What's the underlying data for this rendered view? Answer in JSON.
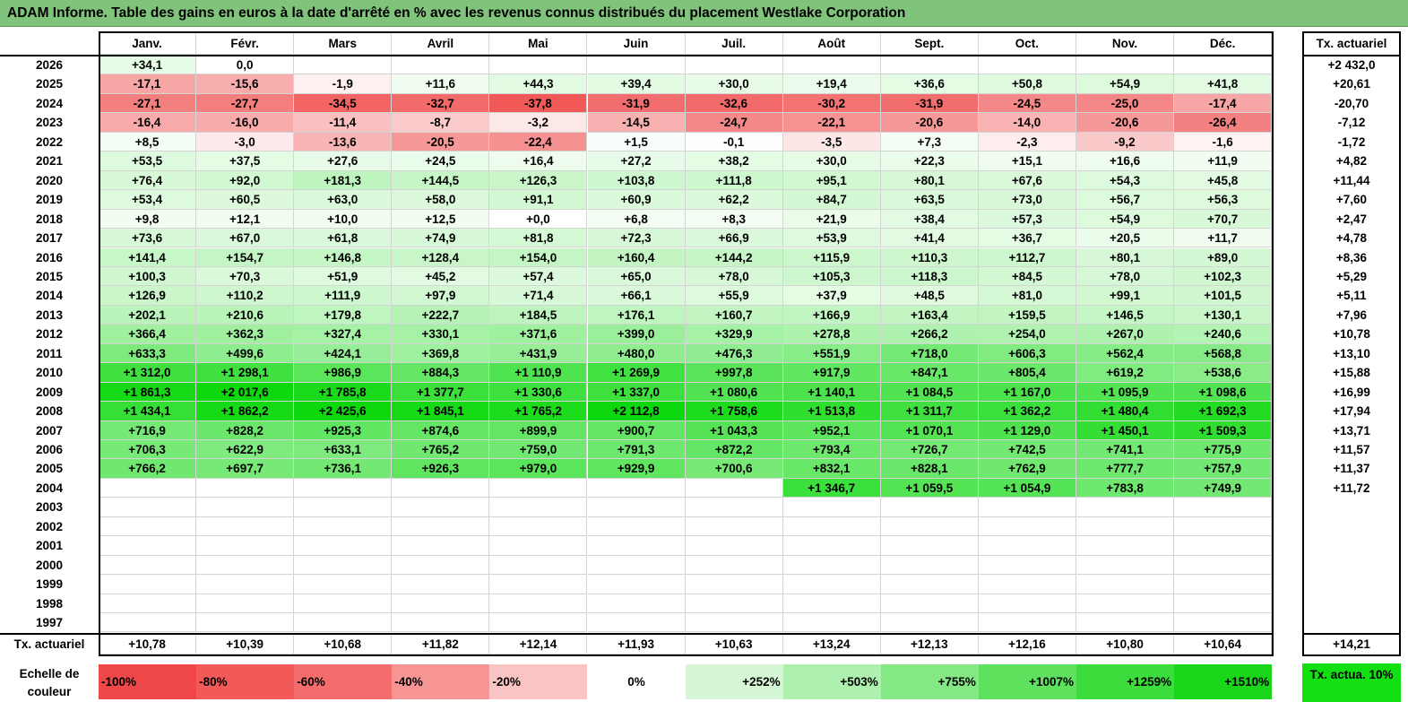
{
  "title": "ADAM Informe. Table des gains en euros à la date d'arrêté en % avec les revenus connus distribués du placement Westlake Corporation",
  "chart_data": {
    "type": "table",
    "months": [
      "Janv.",
      "Févr.",
      "Mars",
      "Avril",
      "Mai",
      "Juin",
      "Juil.",
      "Août",
      "Sept.",
      "Oct.",
      "Nov.",
      "Déc."
    ],
    "annual_header": "Tx. actuariel",
    "rows": [
      {
        "year": "2026",
        "cells": [
          "+34,1",
          "0,0",
          "",
          "",
          "",
          "",
          "",
          "",
          "",
          "",
          "",
          ""
        ],
        "rate": "+2 432,0"
      },
      {
        "year": "2025",
        "cells": [
          "-17,1",
          "-15,6",
          "-1,9",
          "+11,6",
          "+44,3",
          "+39,4",
          "+30,0",
          "+19,4",
          "+36,6",
          "+50,8",
          "+54,9",
          "+41,8"
        ],
        "rate": "+20,61"
      },
      {
        "year": "2024",
        "cells": [
          "-27,1",
          "-27,7",
          "-34,5",
          "-32,7",
          "-37,8",
          "-31,9",
          "-32,6",
          "-30,2",
          "-31,9",
          "-24,5",
          "-25,0",
          "-17,4"
        ],
        "rate": "-20,70"
      },
      {
        "year": "2023",
        "cells": [
          "-16,4",
          "-16,0",
          "-11,4",
          "-8,7",
          "-3,2",
          "-14,5",
          "-24,7",
          "-22,1",
          "-20,6",
          "-14,0",
          "-20,6",
          "-26,4"
        ],
        "rate": "-7,12"
      },
      {
        "year": "2022",
        "cells": [
          "+8,5",
          "-3,0",
          "-13,6",
          "-20,5",
          "-22,4",
          "+1,5",
          "-0,1",
          "-3,5",
          "+7,3",
          "-2,3",
          "-9,2",
          "-1,6"
        ],
        "rate": "-1,72"
      },
      {
        "year": "2021",
        "cells": [
          "+53,5",
          "+37,5",
          "+27,6",
          "+24,5",
          "+16,4",
          "+27,2",
          "+38,2",
          "+30,0",
          "+22,3",
          "+15,1",
          "+16,6",
          "+11,9"
        ],
        "rate": "+4,82"
      },
      {
        "year": "2020",
        "cells": [
          "+76,4",
          "+92,0",
          "+181,3",
          "+144,5",
          "+126,3",
          "+103,8",
          "+111,8",
          "+95,1",
          "+80,1",
          "+67,6",
          "+54,3",
          "+45,8"
        ],
        "rate": "+11,44"
      },
      {
        "year": "2019",
        "cells": [
          "+53,4",
          "+60,5",
          "+63,0",
          "+58,0",
          "+91,1",
          "+60,9",
          "+62,2",
          "+84,7",
          "+63,5",
          "+73,0",
          "+56,7",
          "+56,3"
        ],
        "rate": "+7,60"
      },
      {
        "year": "2018",
        "cells": [
          "+9,8",
          "+12,1",
          "+10,0",
          "+12,5",
          "+0,0",
          "+6,8",
          "+8,3",
          "+21,9",
          "+38,4",
          "+57,3",
          "+54,9",
          "+70,7"
        ],
        "rate": "+2,47"
      },
      {
        "year": "2017",
        "cells": [
          "+73,6",
          "+67,0",
          "+61,8",
          "+74,9",
          "+81,8",
          "+72,3",
          "+66,9",
          "+53,9",
          "+41,4",
          "+36,7",
          "+20,5",
          "+11,7"
        ],
        "rate": "+4,78"
      },
      {
        "year": "2016",
        "cells": [
          "+141,4",
          "+154,7",
          "+146,8",
          "+128,4",
          "+154,0",
          "+160,4",
          "+144,2",
          "+115,9",
          "+110,3",
          "+112,7",
          "+80,1",
          "+89,0"
        ],
        "rate": "+8,36"
      },
      {
        "year": "2015",
        "cells": [
          "+100,3",
          "+70,3",
          "+51,9",
          "+45,2",
          "+57,4",
          "+65,0",
          "+78,0",
          "+105,3",
          "+118,3",
          "+84,5",
          "+78,0",
          "+102,3"
        ],
        "rate": "+5,29"
      },
      {
        "year": "2014",
        "cells": [
          "+126,9",
          "+110,2",
          "+111,9",
          "+97,9",
          "+71,4",
          "+66,1",
          "+55,9",
          "+37,9",
          "+48,5",
          "+81,0",
          "+99,1",
          "+101,5"
        ],
        "rate": "+5,11"
      },
      {
        "year": "2013",
        "cells": [
          "+202,1",
          "+210,6",
          "+179,8",
          "+222,7",
          "+184,5",
          "+176,1",
          "+160,7",
          "+166,9",
          "+163,4",
          "+159,5",
          "+146,5",
          "+130,1"
        ],
        "rate": "+7,96"
      },
      {
        "year": "2012",
        "cells": [
          "+366,4",
          "+362,3",
          "+327,4",
          "+330,1",
          "+371,6",
          "+399,0",
          "+329,9",
          "+278,8",
          "+266,2",
          "+254,0",
          "+267,0",
          "+240,6"
        ],
        "rate": "+10,78"
      },
      {
        "year": "2011",
        "cells": [
          "+633,3",
          "+499,6",
          "+424,1",
          "+369,8",
          "+431,9",
          "+480,0",
          "+476,3",
          "+551,9",
          "+718,0",
          "+606,3",
          "+562,4",
          "+568,8"
        ],
        "rate": "+13,10"
      },
      {
        "year": "2010",
        "cells": [
          "+1 312,0",
          "+1 298,1",
          "+986,9",
          "+884,3",
          "+1 110,9",
          "+1 269,9",
          "+997,8",
          "+917,9",
          "+847,1",
          "+805,4",
          "+619,2",
          "+538,6"
        ],
        "rate": "+15,88"
      },
      {
        "year": "2009",
        "cells": [
          "+1 861,3",
          "+2 017,6",
          "+1 785,8",
          "+1 377,7",
          "+1 330,6",
          "+1 337,0",
          "+1 080,6",
          "+1 140,1",
          "+1 084,5",
          "+1 167,0",
          "+1 095,9",
          "+1 098,6"
        ],
        "rate": "+16,99"
      },
      {
        "year": "2008",
        "cells": [
          "+1 434,1",
          "+1 862,2",
          "+2 425,6",
          "+1 845,1",
          "+1 765,2",
          "+2 112,8",
          "+1 758,6",
          "+1 513,8",
          "+1 311,7",
          "+1 362,2",
          "+1 480,4",
          "+1 692,3"
        ],
        "rate": "+17,94"
      },
      {
        "year": "2007",
        "cells": [
          "+716,9",
          "+828,2",
          "+925,3",
          "+874,6",
          "+899,9",
          "+900,7",
          "+1 043,3",
          "+952,1",
          "+1 070,1",
          "+1 129,0",
          "+1 450,1",
          "+1 509,3"
        ],
        "rate": "+13,71"
      },
      {
        "year": "2006",
        "cells": [
          "+706,3",
          "+622,9",
          "+633,1",
          "+765,2",
          "+759,0",
          "+791,3",
          "+872,2",
          "+793,4",
          "+726,7",
          "+742,5",
          "+741,1",
          "+775,9"
        ],
        "rate": "+11,57"
      },
      {
        "year": "2005",
        "cells": [
          "+766,2",
          "+697,7",
          "+736,1",
          "+926,3",
          "+979,0",
          "+929,9",
          "+700,6",
          "+832,1",
          "+828,1",
          "+762,9",
          "+777,7",
          "+757,9"
        ],
        "rate": "+11,37"
      },
      {
        "year": "2004",
        "cells": [
          "",
          "",
          "",
          "",
          "",
          "",
          "",
          "+1 346,7",
          "+1 059,5",
          "+1 054,9",
          "+783,8",
          "+749,9"
        ],
        "rate": "+11,72"
      },
      {
        "year": "2003",
        "cells": [
          "",
          "",
          "",
          "",
          "",
          "",
          "",
          "",
          "",
          "",
          "",
          ""
        ],
        "rate": ""
      },
      {
        "year": "2002",
        "cells": [
          "",
          "",
          "",
          "",
          "",
          "",
          "",
          "",
          "",
          "",
          "",
          ""
        ],
        "rate": ""
      },
      {
        "year": "2001",
        "cells": [
          "",
          "",
          "",
          "",
          "",
          "",
          "",
          "",
          "",
          "",
          "",
          ""
        ],
        "rate": ""
      },
      {
        "year": "2000",
        "cells": [
          "",
          "",
          "",
          "",
          "",
          "",
          "",
          "",
          "",
          "",
          "",
          ""
        ],
        "rate": ""
      },
      {
        "year": "1999",
        "cells": [
          "",
          "",
          "",
          "",
          "",
          "",
          "",
          "",
          "",
          "",
          "",
          ""
        ],
        "rate": ""
      },
      {
        "year": "1998",
        "cells": [
          "",
          "",
          "",
          "",
          "",
          "",
          "",
          "",
          "",
          "",
          "",
          ""
        ],
        "rate": ""
      },
      {
        "year": "1997",
        "cells": [
          "",
          "",
          "",
          "",
          "",
          "",
          "",
          "",
          "",
          "",
          "",
          ""
        ],
        "rate": ""
      }
    ],
    "footer": {
      "label": "Tx. actuariel",
      "cells": [
        "+10,78",
        "+10,39",
        "+10,68",
        "+11,82",
        "+12,14",
        "+11,93",
        "+10,63",
        "+13,24",
        "+12,13",
        "+12,16",
        "+10,80",
        "+10,64"
      ],
      "rate": "+14,21"
    },
    "color_scale": {
      "label": "Echelle de couleur",
      "steps": [
        {
          "label": "-100%",
          "color": "#f04848"
        },
        {
          "label": "-80%",
          "color": "#f25a5a"
        },
        {
          "label": "-60%",
          "color": "#f46c6c"
        },
        {
          "label": "-40%",
          "color": "#f79494"
        },
        {
          "label": "-20%",
          "color": "#fbc4c4"
        },
        {
          "label": "0%",
          "color": "#ffffff"
        },
        {
          "label": "+252%",
          "color": "#d6f7d6"
        },
        {
          "label": "+503%",
          "color": "#aef0ae"
        },
        {
          "label": "+755%",
          "color": "#84e984"
        },
        {
          "label": "+1007%",
          "color": "#5ee25e"
        },
        {
          "label": "+1259%",
          "color": "#3bdc3b"
        },
        {
          "label": "+1510%",
          "color": "#1ad61a"
        }
      ],
      "annual_label": "Tx. actua. 10%",
      "annual_color": "#13e013"
    }
  }
}
